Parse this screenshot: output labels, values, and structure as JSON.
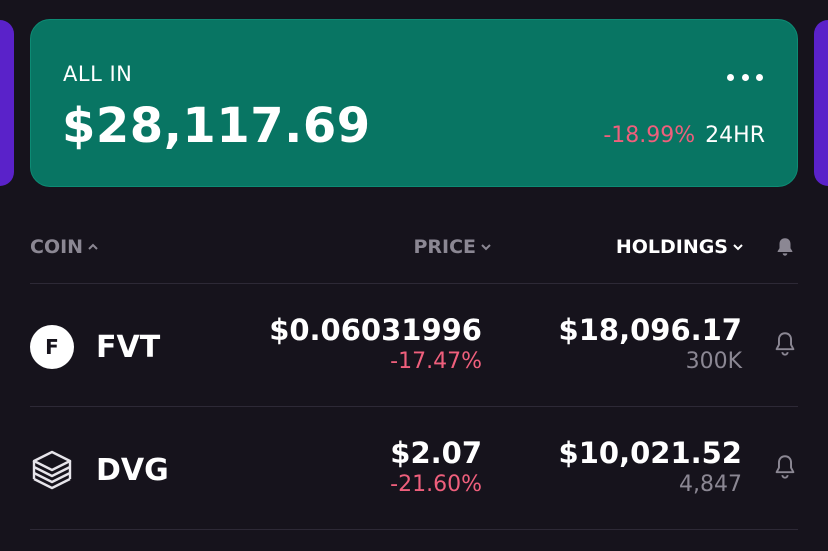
{
  "portfolio": {
    "label": "ALL IN",
    "total": "$28,117.69",
    "change_pct": "-18.99%",
    "change_period": "24HR",
    "accent_color": "#087563",
    "negative_color": "#ef5f7c",
    "side_card_color": "#5a22c9"
  },
  "table_header": {
    "coin": "COIN",
    "price": "PRICE",
    "holdings": "HOLDINGS"
  },
  "coins": [
    {
      "icon": "fvt-logo-icon",
      "icon_letter": "F",
      "symbol": "FVT",
      "price": "$0.06031996",
      "price_change": "-17.47%",
      "holding_value": "$18,096.17",
      "holding_qty": "300K"
    },
    {
      "icon": "dvg-logo-icon",
      "symbol": "DVG",
      "price": "$2.07",
      "price_change": "-21.60%",
      "holding_value": "$10,021.52",
      "holding_qty": "4,847"
    }
  ]
}
